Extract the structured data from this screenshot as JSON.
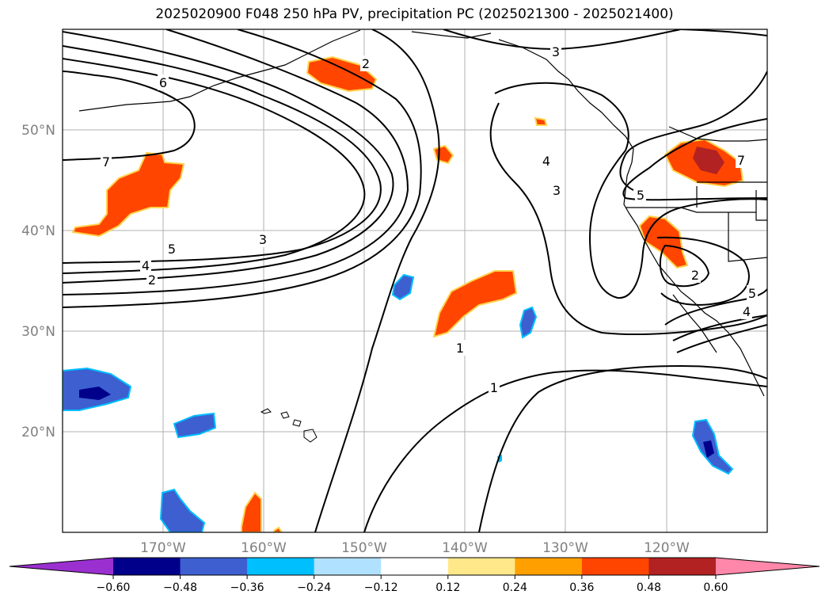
{
  "title": "2025020900 F048 250 hPa PV, precipitation PC (2025021300 - 2025021400)",
  "map": {
    "lon_range": [
      -180,
      -110
    ],
    "lat_range": [
      10,
      60
    ],
    "lon_labels": [
      "170°W",
      "160°W",
      "150°W",
      "140°W",
      "130°W",
      "120°W"
    ],
    "lat_labels": [
      "50°N",
      "40°N",
      "30°N",
      "20°N"
    ],
    "contour_labels": [
      "2",
      "3",
      "6",
      "7",
      "5",
      "4",
      "2",
      "3",
      "4",
      "3",
      "5",
      "7",
      "2",
      "5",
      "4",
      "1",
      "1"
    ]
  },
  "colorbar": {
    "ticks": [
      "−0.60",
      "−0.48",
      "−0.36",
      "−0.24",
      "−0.12",
      "0.12",
      "0.24",
      "0.36",
      "0.48",
      "0.60"
    ],
    "colors": [
      "#9b30d0",
      "#00008b",
      "#3d5fd0",
      "#00bfff",
      "#b0e2ff",
      "#ffffff",
      "#ffe88a",
      "#ffa000",
      "#ff4500",
      "#b22222",
      "#ff88aa",
      "#ff88aa"
    ]
  }
}
